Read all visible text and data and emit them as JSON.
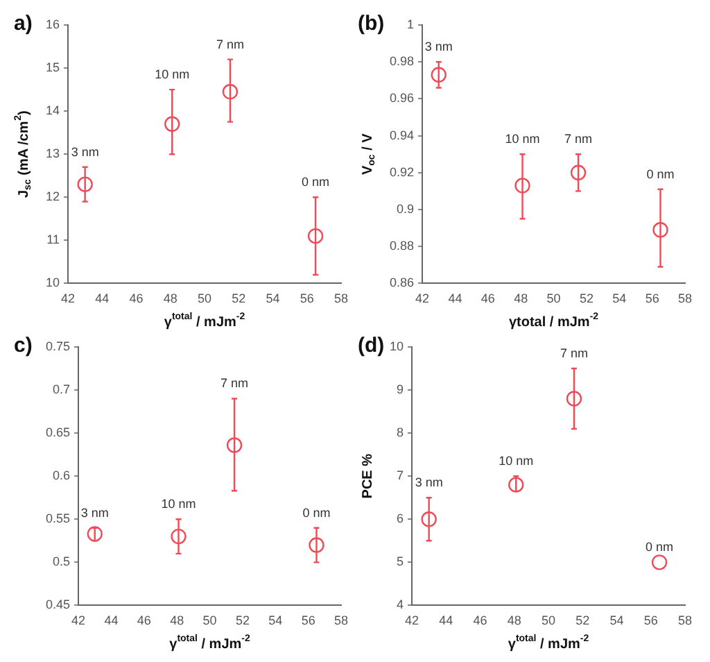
{
  "chart_data": [
    {
      "type": "scatter",
      "title": "a)",
      "xlabel": "γ$^{total}$ / mJm$^{-2}$",
      "ylabel": "J$_{sc}$ (mA /cm$^{2}$)",
      "marker": "circle",
      "x": [
        43,
        48.1,
        51.5,
        56.5
      ],
      "series": [
        {
          "color": "#f04a57",
          "values": [
            12.3,
            13.7,
            14.45,
            11.1
          ],
          "errors": [
            [
              11.9,
              12.7
            ],
            [
              13.0,
              14.5
            ],
            [
              13.75,
              15.2
            ],
            [
              10.2,
              12.0
            ]
          ]
        }
      ],
      "xlim": [
        42,
        58
      ],
      "xticks": [
        42,
        44,
        46,
        48,
        50,
        52,
        54,
        56,
        58
      ],
      "ylim": [
        10,
        16
      ],
      "yticks": [
        10,
        11,
        12,
        13,
        14,
        15,
        16
      ],
      "annotations": [
        {
          "text": "3 nm",
          "x": 43,
          "y": 12.7
        },
        {
          "text": "10 nm",
          "x": 48.1,
          "y": 14.5
        },
        {
          "text": "7 nm",
          "x": 51.5,
          "y": 15.2
        },
        {
          "text": "0 nm",
          "x": 56.5,
          "y": 12.0
        }
      ]
    },
    {
      "type": "scatter",
      "title": "(b)",
      "xlabel": "γtotal / mJm$^{-2}$",
      "ylabel": "V$_{oc}$ / V",
      "marker": "circle",
      "x": [
        43,
        48.1,
        51.5,
        56.5
      ],
      "series": [
        {
          "color": "#f04a57",
          "values": [
            0.973,
            0.913,
            0.92,
            0.889
          ],
          "errors": [
            [
              0.966,
              0.98
            ],
            [
              0.895,
              0.93
            ],
            [
              0.91,
              0.93
            ],
            [
              0.869,
              0.911
            ]
          ]
        }
      ],
      "xlim": [
        42,
        58
      ],
      "xticks": [
        42,
        44,
        46,
        48,
        50,
        52,
        54,
        56,
        58
      ],
      "ylim": [
        0.86,
        1
      ],
      "yticks": [
        0.86,
        0.88,
        0.9,
        0.92,
        0.94,
        0.96,
        0.98,
        1
      ],
      "annotations": [
        {
          "text": "3 nm",
          "x": 43,
          "y": 0.98
        },
        {
          "text": "10 nm",
          "x": 48.1,
          "y": 0.93
        },
        {
          "text": "7 nm",
          "x": 51.5,
          "y": 0.93
        },
        {
          "text": "0 nm",
          "x": 56.5,
          "y": 0.911
        }
      ]
    },
    {
      "type": "scatter",
      "title": "c)",
      "xlabel": "γ$^{total}$ / mJm$^{-2}$",
      "marker": "circle",
      "x": [
        43,
        48.1,
        51.5,
        56.5
      ],
      "series": [
        {
          "color": "#f04a57",
          "values": [
            0.533,
            0.53,
            0.636,
            0.52
          ],
          "errors": [
            [
              0.525,
              0.54
            ],
            [
              0.51,
              0.55
            ],
            [
              0.583,
              0.69
            ],
            [
              0.5,
              0.54
            ]
          ]
        }
      ],
      "xlim": [
        42,
        58
      ],
      "xticks": [
        42,
        44,
        46,
        48,
        50,
        52,
        54,
        56,
        58
      ],
      "ylim": [
        0.45,
        0.75
      ],
      "yticks": [
        0.45,
        0.5,
        0.55,
        0.6,
        0.65,
        0.7,
        0.75
      ],
      "annotations": [
        {
          "text": "3 nm",
          "x": 43,
          "y": 0.54
        },
        {
          "text": "10 nm",
          "x": 48.1,
          "y": 0.55
        },
        {
          "text": "7 nm",
          "x": 51.5,
          "y": 0.69
        },
        {
          "text": "0 nm",
          "x": 56.5,
          "y": 0.54
        }
      ]
    },
    {
      "type": "scatter",
      "title": "(d)",
      "xlabel": "γ$^{total}$ / mJm$^{-2}$",
      "ylabel": "PCE %",
      "marker": "circle",
      "x": [
        43,
        48.1,
        51.5,
        56.5
      ],
      "series": [
        {
          "color": "#f04a57",
          "values": [
            6.0,
            6.8,
            8.8,
            5.0
          ],
          "errors": [
            [
              5.5,
              6.5
            ],
            [
              6.65,
              7.0
            ],
            [
              8.1,
              9.5
            ],
            null
          ]
        }
      ],
      "xlim": [
        42,
        58
      ],
      "xticks": [
        42,
        44,
        46,
        48,
        50,
        52,
        54,
        56,
        58
      ],
      "ylim": [
        4,
        10
      ],
      "yticks": [
        4,
        5,
        6,
        7,
        8,
        9,
        10
      ],
      "annotations": [
        {
          "text": "3 nm",
          "x": 43,
          "y": 6.5
        },
        {
          "text": "10 nm",
          "x": 48.1,
          "y": 7.0
        },
        {
          "text": "7 nm",
          "x": 51.5,
          "y": 9.5
        },
        {
          "text": "0 nm",
          "x": 56.5,
          "y": 5.0
        }
      ]
    }
  ]
}
